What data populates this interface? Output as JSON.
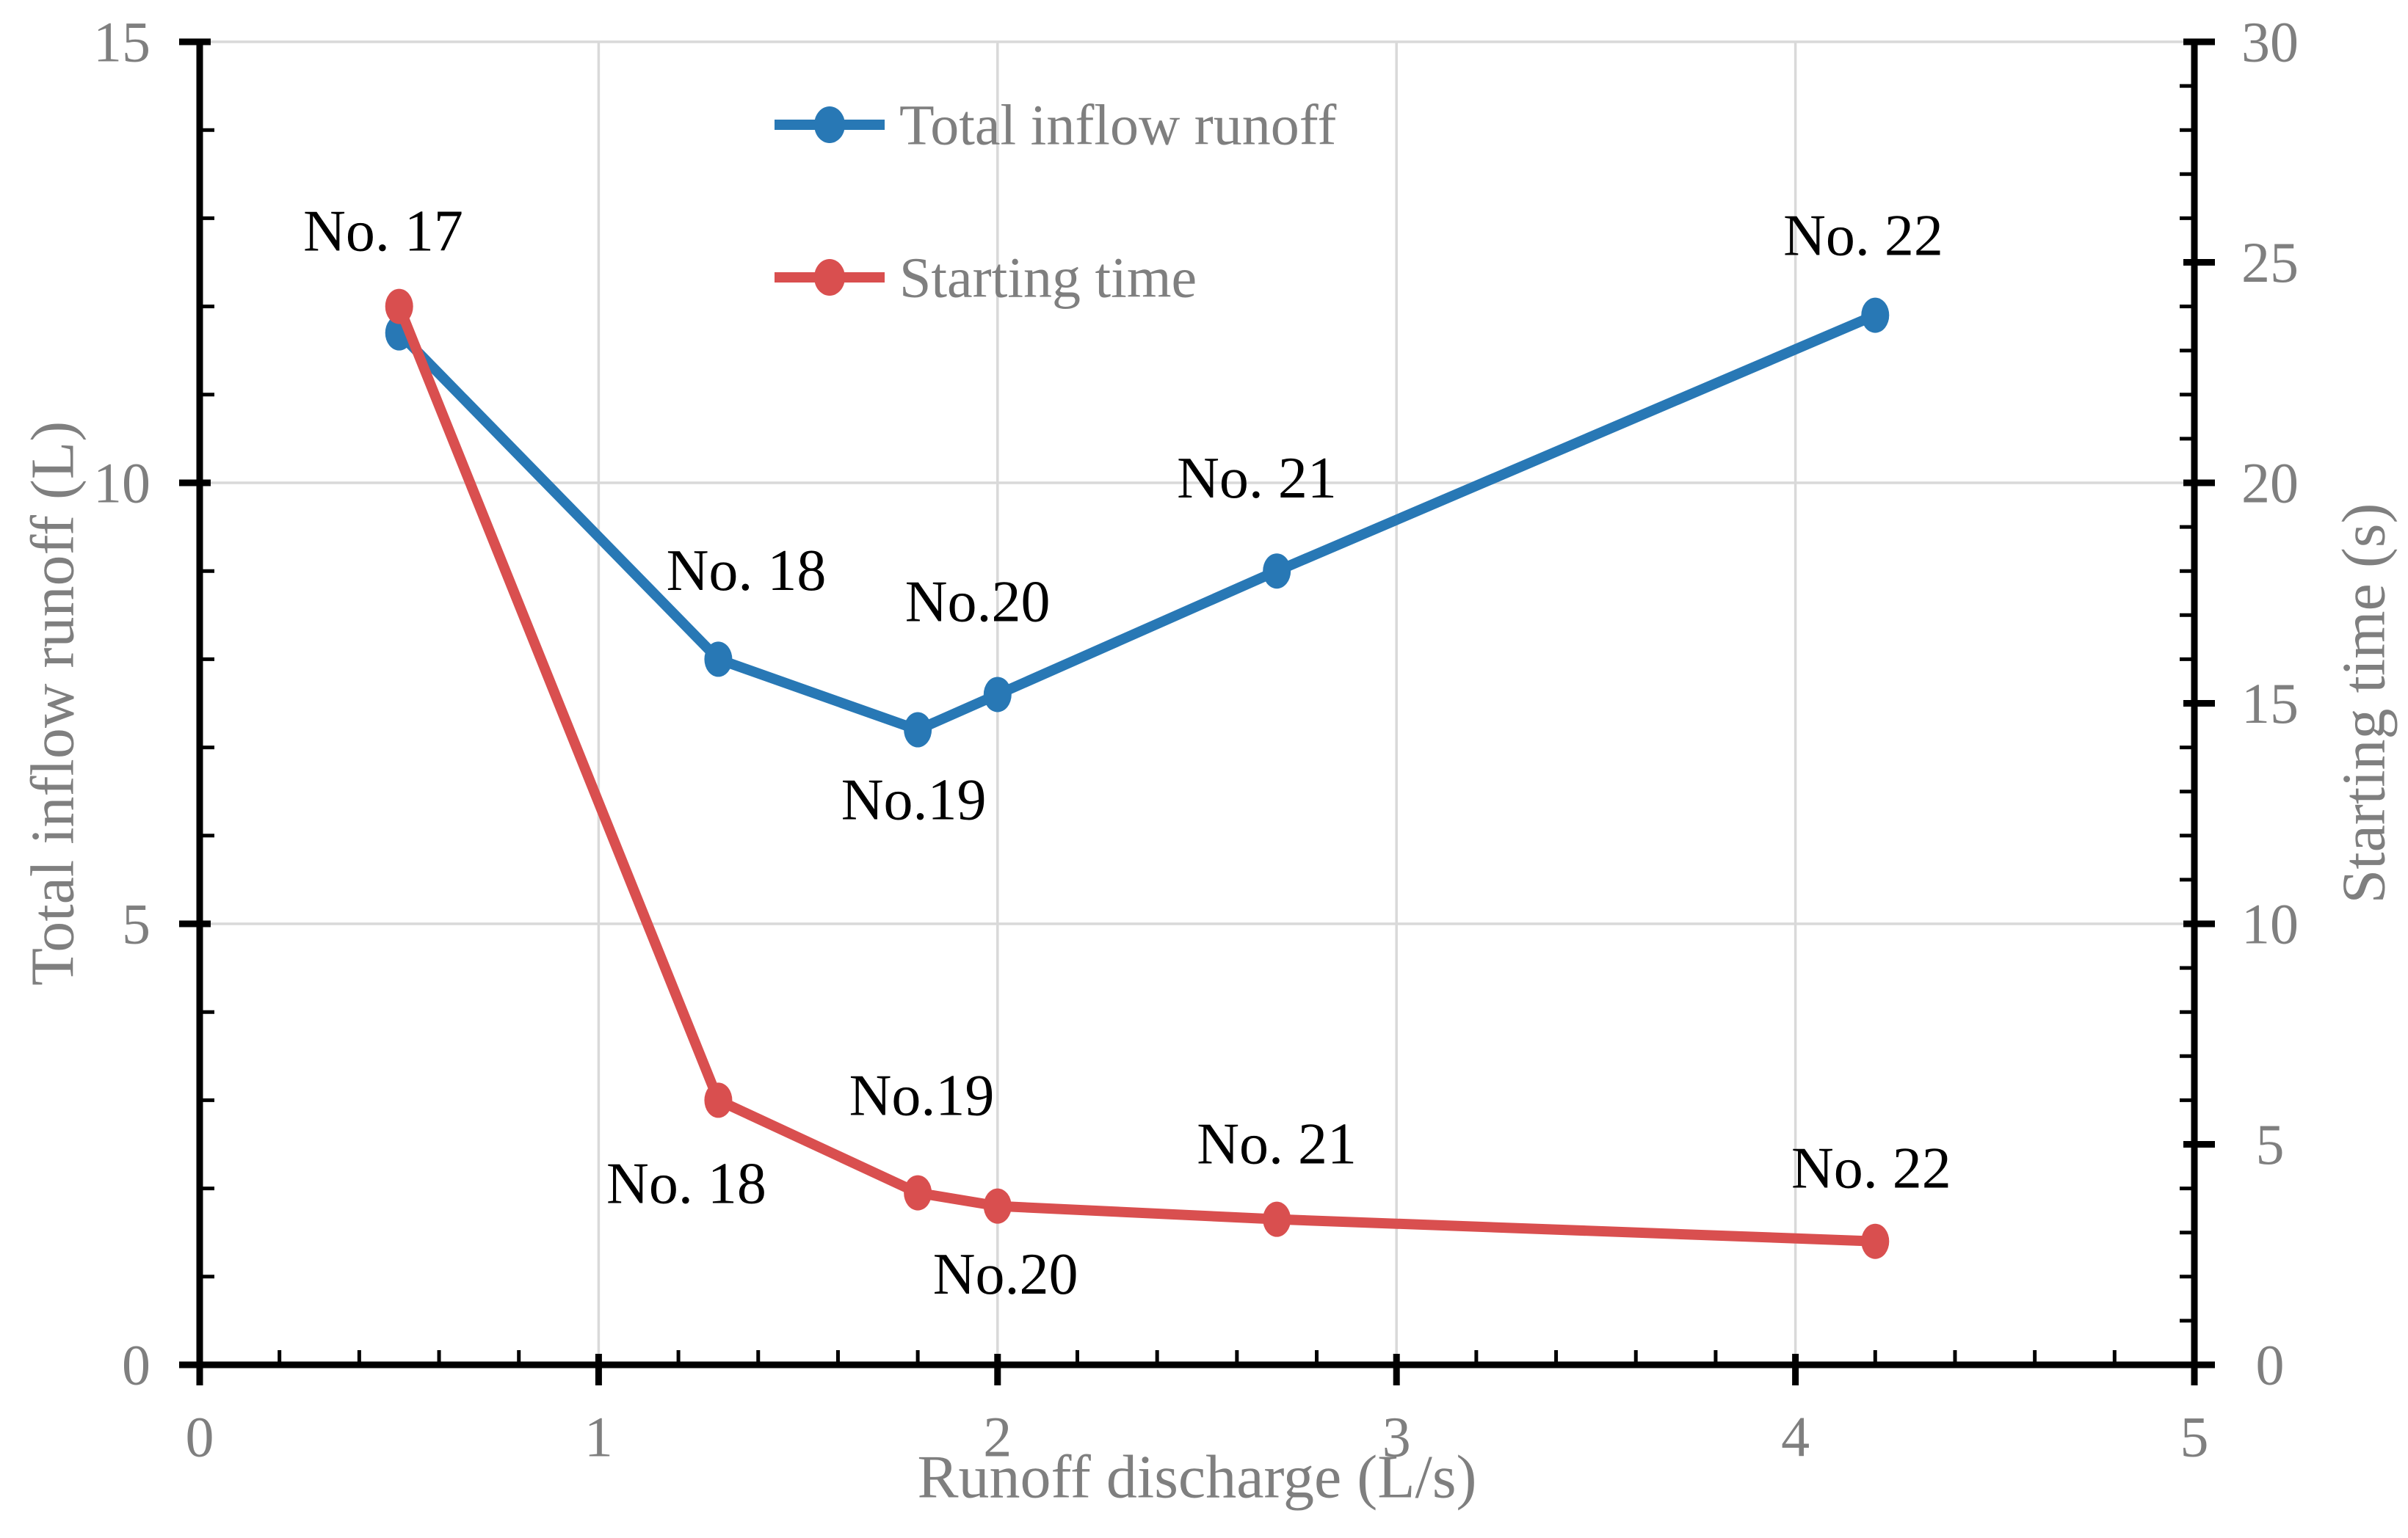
{
  "figure": {
    "background": "#ffffff",
    "colors": {
      "axis_line": "#000000",
      "gridline": "#d9d9d9",
      "tick_label": "#7f7f7f",
      "axis_title": "#7f7f7f",
      "annotation": "#000000",
      "series_blue": "#2878b5",
      "series_red": "#d94f4f"
    }
  },
  "legend": {
    "items": [
      {
        "label": "Total inflow runoff",
        "color": "#2878b5"
      },
      {
        "label": "Starting time",
        "color": "#d94f4f"
      }
    ]
  },
  "chart_data": {
    "type": "line",
    "title": "",
    "xlabel": "Runoff discharge (L/s)",
    "ylabel_left": "Total inflow runoff (L)",
    "ylabel_right": "Starting time (s)",
    "grid": "on",
    "legend_position": "upper-center-inside",
    "x_axis": {
      "min": 0,
      "max": 5,
      "major_step": 1,
      "minor_step": 0.2,
      "tick_labels": [
        "0",
        "1",
        "2",
        "3",
        "4",
        "5"
      ]
    },
    "y_axis_left": {
      "min": 0,
      "max": 15,
      "major_step": 5,
      "minor_step": 1,
      "tick_labels": [
        "0",
        "5",
        "10",
        "15"
      ]
    },
    "y_axis_right": {
      "min": 0,
      "max": 30,
      "major_step": 5,
      "minor_step": 1,
      "tick_labels": [
        "0",
        "5",
        "10",
        "15",
        "20",
        "25",
        "30"
      ]
    },
    "series": [
      {
        "name": "Total inflow runoff",
        "axis": "left",
        "color": "#2878b5",
        "x": [
          0.5,
          1.3,
          1.8,
          2.0,
          2.7,
          4.2
        ],
        "y": [
          11.7,
          8.0,
          7.2,
          7.6,
          9.0,
          11.9
        ]
      },
      {
        "name": "Starting time",
        "axis": "right",
        "color": "#d94f4f",
        "x": [
          0.5,
          1.3,
          1.8,
          2.0,
          2.7,
          4.2
        ],
        "y": [
          24.0,
          6.0,
          3.9,
          3.6,
          3.3,
          2.8
        ]
      }
    ],
    "annotations": [
      {
        "text": "No. 17",
        "x": 0.46,
        "y": 12.85,
        "axis": "left"
      },
      {
        "text": "No. 18",
        "x": 1.37,
        "y": 9.0,
        "axis": "left"
      },
      {
        "text": "No.19",
        "x": 1.79,
        "y": 6.4,
        "axis": "left"
      },
      {
        "text": "No.20",
        "x": 1.95,
        "y": 8.65,
        "axis": "left"
      },
      {
        "text": "No. 21",
        "x": 2.65,
        "y": 10.05,
        "axis": "left"
      },
      {
        "text": "No. 22",
        "x": 4.17,
        "y": 12.8,
        "axis": "left"
      },
      {
        "text": "No. 18",
        "x": 1.22,
        "y": 4.1,
        "axis": "right"
      },
      {
        "text": "No.19",
        "x": 1.81,
        "y": 6.1,
        "axis": "right"
      },
      {
        "text": "No.20",
        "x": 2.02,
        "y": 2.05,
        "axis": "right"
      },
      {
        "text": "No. 21",
        "x": 2.7,
        "y": 5.0,
        "axis": "right"
      },
      {
        "text": "No. 22",
        "x": 4.19,
        "y": 4.45,
        "axis": "right"
      }
    ]
  }
}
